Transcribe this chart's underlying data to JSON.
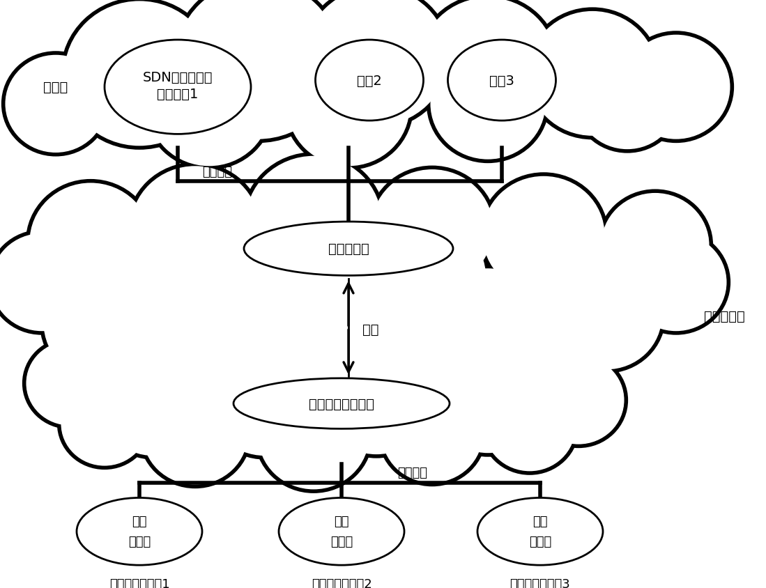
{
  "bg_color": "#ffffff",
  "line_lw": 4.0,
  "inner_lw": 2.0,
  "alg1_text1": "SDN服务承载网",
  "alg1_text2": "构建算法1",
  "alg2_text": "算批2",
  "alg3_text": "算批3",
  "distributed_text": "分布式",
  "global_map_text": "全局映射表",
  "ctrl_node_text": "控制面节点",
  "global_flow_text": "全局流表与转发表",
  "exchange_top_text": "交换网络",
  "exchange_bot_text": "交换网络",
  "convert_text": "转换",
  "device_labels": [
    "数据面转发设备1",
    "数据面转发设备2",
    "数据面转发设备3"
  ],
  "flow_table_text": "流表",
  "forward_table_text": "转发表"
}
